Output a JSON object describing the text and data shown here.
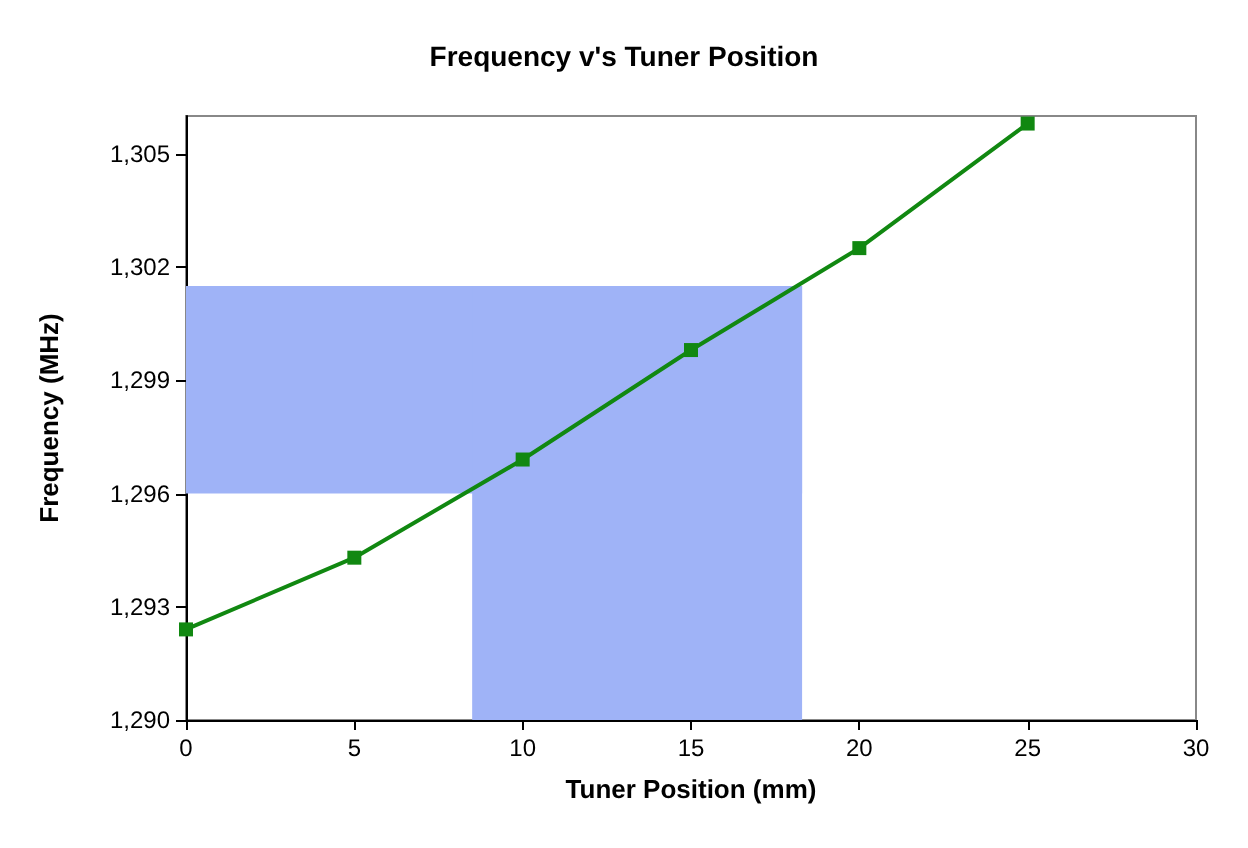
{
  "chart_data": {
    "type": "line",
    "title": "Frequency v's Tuner Position",
    "xlabel": "Tuner Position (mm)",
    "ylabel": "Frequency (MHz)",
    "x": [
      0,
      5,
      10,
      15,
      20,
      25
    ],
    "series": [
      {
        "color": "#118811",
        "values": [
          1292.4,
          1294.3,
          1296.9,
          1299.8,
          1302.5,
          1305.8
        ]
      }
    ],
    "xlim": [
      0,
      30
    ],
    "xticks": [
      0,
      5,
      10,
      15,
      20,
      25,
      30
    ],
    "ylim": [
      1290,
      1306
    ],
    "yticks": [
      {
        "value": 1290,
        "label": "1,290"
      },
      {
        "value": 1293,
        "label": "1,293"
      },
      {
        "value": 1296,
        "label": "1,296"
      },
      {
        "value": 1299,
        "label": "1,299"
      },
      {
        "value": 1302,
        "label": "1,302"
      },
      {
        "value": 1305,
        "label": "1,305"
      }
    ],
    "bands": [
      {
        "axis": "y",
        "from": 1296,
        "to": 1301.5,
        "color": "#9fb3f7"
      },
      {
        "axis": "x",
        "from": 8.5,
        "to": 18.3,
        "color": "#9fb3f7"
      }
    ],
    "grid": false,
    "marker": "square",
    "line_style": "solid"
  }
}
